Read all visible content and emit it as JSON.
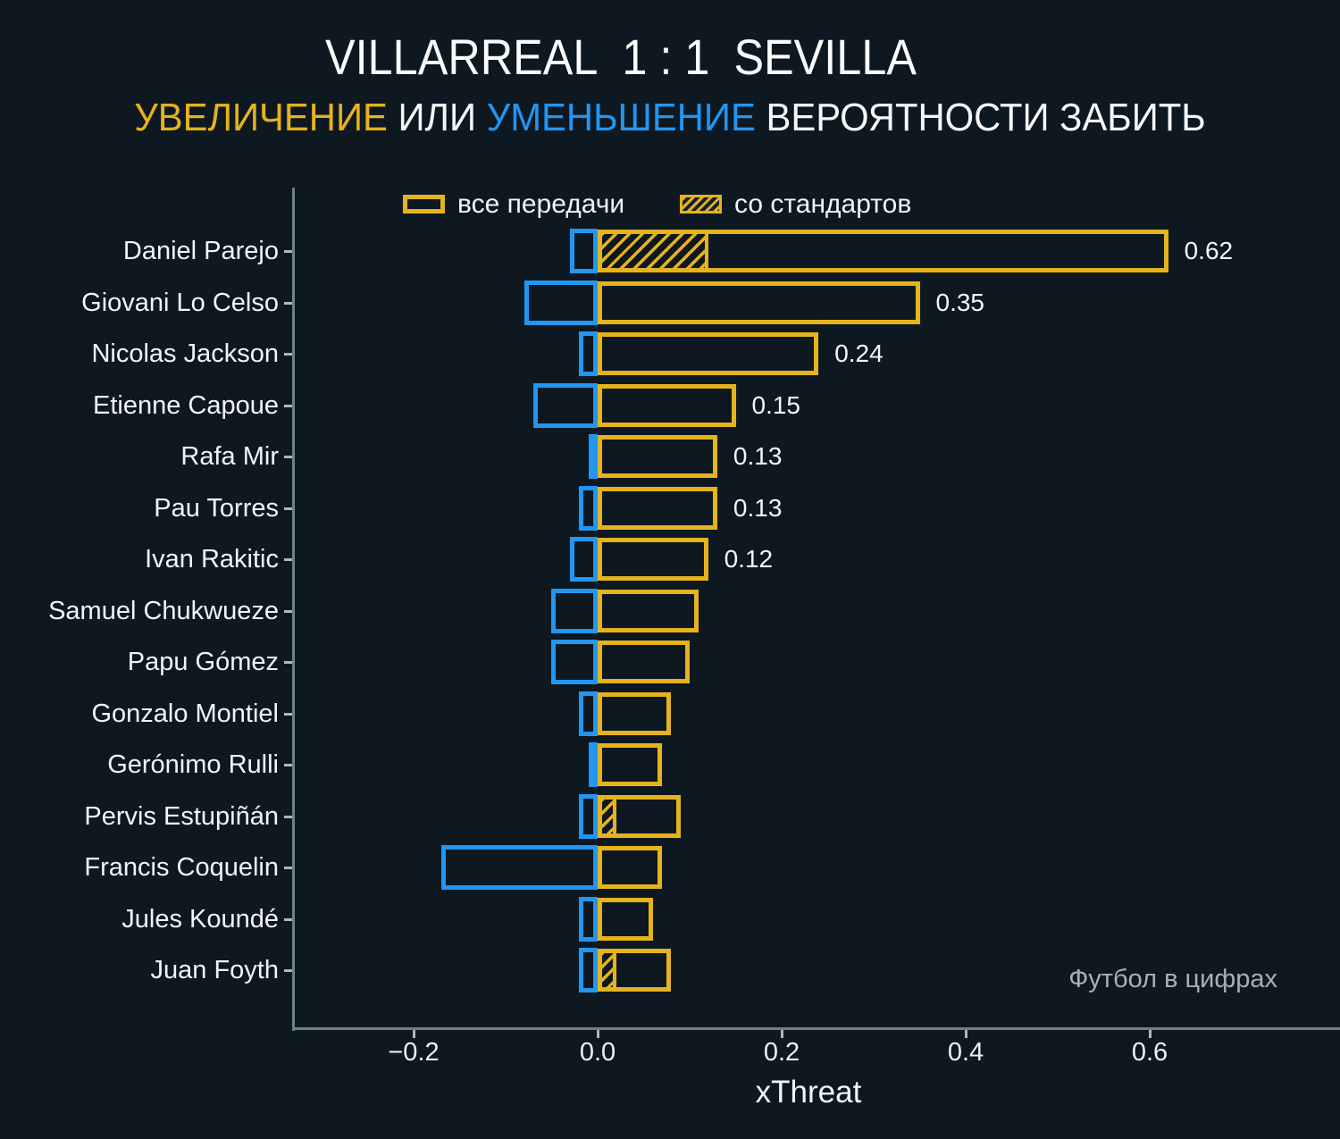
{
  "title": {
    "home": "VILLARREAL",
    "score": "1 : 1",
    "away": "SEVILLA"
  },
  "subtitle": {
    "parts": [
      {
        "text": "УВЕЛИЧЕНИЕ",
        "color": "#e5b31c"
      },
      {
        "text": " ИЛИ ",
        "color": "#f5f7f7"
      },
      {
        "text": "УМЕНЬШЕНИЕ",
        "color": "#2196f3"
      },
      {
        "text": " ВЕРОЯТНОСТИ ЗАБИТЬ",
        "color": "#f5f7f7"
      }
    ]
  },
  "legend": {
    "all_passes": "все передачи",
    "set_pieces": "со стандартов"
  },
  "watermark": "Футбол в цифрах",
  "colors": {
    "background": "#0e1821",
    "increase": "#e5b31c",
    "decrease": "#2196f3",
    "spine": "#6f8087",
    "text": "#f5f7f7"
  },
  "chart_data": {
    "type": "bar",
    "orientation": "horizontal",
    "title": "VILLARREAL 1 : 1 SEVILLA",
    "subtitle": "УВЕЛИЧЕНИЕ ИЛИ УМЕНЬШЕНИЕ ВЕРОЯТНОСТИ ЗАБИТЬ",
    "xlabel": "xThreat",
    "xlim": [
      -0.33,
      0.81
    ],
    "grid": false,
    "legend_position": "top-inside",
    "x_ticks": [
      {
        "value": -0.2,
        "label": "−0.2"
      },
      {
        "value": 0.0,
        "label": "0.0"
      },
      {
        "value": 0.2,
        "label": "0.2"
      },
      {
        "value": 0.4,
        "label": "0.4"
      },
      {
        "value": 0.6,
        "label": "0.6"
      }
    ],
    "series_legend": [
      {
        "name": "все передачи",
        "style": "outline",
        "color": "#e5b31c"
      },
      {
        "name": "со стандартов",
        "style": "hatch",
        "color": "#e5b31c"
      }
    ],
    "players": [
      {
        "name": "Daniel Parejo",
        "positive": 0.62,
        "negative": -0.03,
        "set_pieces": 0.12,
        "value_label": "0.62"
      },
      {
        "name": "Giovani Lo Celso",
        "positive": 0.35,
        "negative": -0.08,
        "set_pieces": 0,
        "value_label": "0.35"
      },
      {
        "name": "Nicolas Jackson",
        "positive": 0.24,
        "negative": -0.02,
        "set_pieces": 0,
        "value_label": "0.24"
      },
      {
        "name": "Etienne Capoue",
        "positive": 0.15,
        "negative": -0.07,
        "set_pieces": 0,
        "value_label": "0.15"
      },
      {
        "name": "Rafa Mir",
        "positive": 0.13,
        "negative": -0.01,
        "set_pieces": 0,
        "value_label": "0.13"
      },
      {
        "name": "Pau Torres",
        "positive": 0.13,
        "negative": -0.02,
        "set_pieces": 0,
        "value_label": "0.13"
      },
      {
        "name": "Ivan Rakitic",
        "positive": 0.12,
        "negative": -0.03,
        "set_pieces": 0,
        "value_label": "0.12"
      },
      {
        "name": "Samuel Chukwueze",
        "positive": 0.11,
        "negative": -0.05,
        "set_pieces": 0,
        "value_label": ""
      },
      {
        "name": "Papu Gómez",
        "positive": 0.1,
        "negative": -0.05,
        "set_pieces": 0,
        "value_label": ""
      },
      {
        "name": "Gonzalo Montiel",
        "positive": 0.08,
        "negative": -0.02,
        "set_pieces": 0.005,
        "value_label": ""
      },
      {
        "name": "Gerónimo Rulli",
        "positive": 0.07,
        "negative": -0.01,
        "set_pieces": 0,
        "value_label": ""
      },
      {
        "name": "Pervis Estupiñán",
        "positive": 0.09,
        "negative": -0.02,
        "set_pieces": 0.02,
        "value_label": ""
      },
      {
        "name": "Francis Coquelin",
        "positive": 0.07,
        "negative": -0.17,
        "set_pieces": 0,
        "value_label": ""
      },
      {
        "name": "Jules Koundé",
        "positive": 0.06,
        "negative": -0.02,
        "set_pieces": 0,
        "value_label": ""
      },
      {
        "name": "Juan Foyth",
        "positive": 0.08,
        "negative": -0.02,
        "set_pieces": 0.02,
        "value_label": ""
      }
    ]
  }
}
